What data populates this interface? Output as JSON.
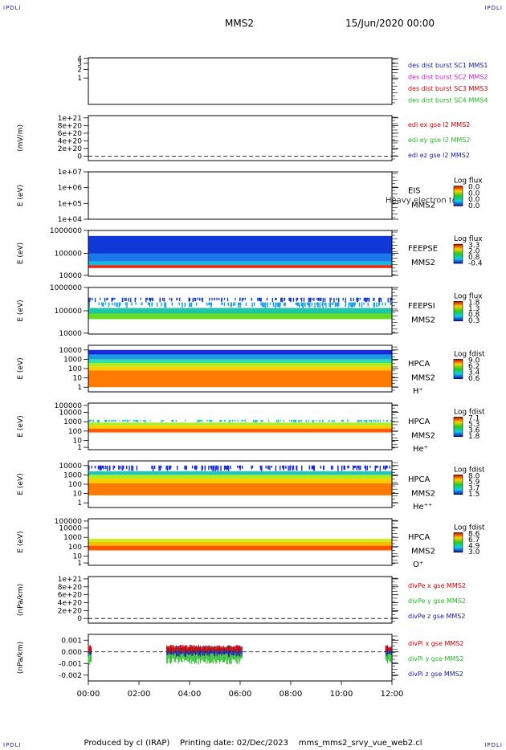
{
  "corner_label": "IPDLI",
  "header": {
    "spacecraft": "MMS2",
    "date": "15/Jun/2020 00:00"
  },
  "footer": {
    "produced_by": "Produced by cl (IRAP)",
    "printing_date": "Printing date: 02/Dec/2023",
    "file": "mms_mms2_srvy_vue_web2.cl"
  },
  "time_axis": {
    "ticks": [
      "00:00",
      "02:00",
      "04:00",
      "06:00",
      "08:00",
      "10:00",
      "12:00"
    ]
  },
  "colors": {
    "red": "#d40000",
    "green": "#22bb22",
    "blue": "#1a1aa6",
    "magenta": "#cc22cc"
  },
  "chart_data": [
    {
      "type": "line",
      "ylabel": "",
      "yticks": [
        "1",
        "2",
        "3",
        "4"
      ],
      "legend": [
        {
          "text": "des dist burst SC1 MMS1",
          "color": "#1a1aa6"
        },
        {
          "text": "des dist burst SC2 MMS2",
          "color": "#cc22cc"
        },
        {
          "text": "des dist burst SC3 MMS3",
          "color": "#d40000"
        },
        {
          "text": "des dist burst SC4 MMS4",
          "color": "#22bb22"
        }
      ]
    },
    {
      "type": "line",
      "ylabel": "(mV/m)",
      "yticks": [
        "0",
        "2e+20",
        "4e+20",
        "6e+20",
        "8e+20",
        "1e+21"
      ],
      "zero_line": true,
      "legend": [
        {
          "text": "edi ex gse l2 MMS2",
          "color": "#d40000"
        },
        {
          "text": "edi ey gse l2 MMS2",
          "color": "#22bb22"
        },
        {
          "text": "edi ez gse l2 MMS2",
          "color": "#1a1aa6"
        }
      ]
    },
    {
      "type": "heatmap",
      "ylabel": "E (eV)",
      "yticks": [
        "1e+04",
        "1e+05",
        "1e+06",
        "1e+07"
      ],
      "instrument": "EIS",
      "spacecraft": "MMS2",
      "extra": "Heavy electron td",
      "colorbar": {
        "title": "Log flux",
        "ticks": [
          "0.0",
          "0.0",
          "0.0",
          "0.0"
        ]
      },
      "bands": []
    },
    {
      "type": "heatmap",
      "ylabel": "E (eV)",
      "yticks": [
        "10000",
        "100000",
        "1000000"
      ],
      "instrument": "FEEPSE",
      "spacecraft": "MMS2",
      "colorbar": {
        "title": "Log flux",
        "ticks": [
          "3.3",
          "2.0",
          "0.8",
          "-0.4"
        ]
      },
      "bands": [
        {
          "y0": 0.88,
          "y1": 0.5,
          "color": "#1038d8"
        },
        {
          "y0": 0.5,
          "y1": 0.32,
          "color": "#1a78e8"
        },
        {
          "y0": 0.32,
          "y1": 0.24,
          "color": "#12b8e0"
        },
        {
          "y0": 0.24,
          "y1": 0.18,
          "color": "#ee2200"
        }
      ]
    },
    {
      "type": "heatmap",
      "ylabel": "E (eV)",
      "yticks": [
        "10000",
        "100000",
        "1000000"
      ],
      "instrument": "FEEPSI",
      "spacecraft": "MMS2",
      "colorbar": {
        "title": "Log flux",
        "ticks": [
          "1.8",
          "1.3",
          "0.8",
          "0.3"
        ]
      },
      "bands": [
        {
          "y0": 0.78,
          "y1": 0.68,
          "color": "#1a3ac8",
          "sparse": true
        },
        {
          "y0": 0.68,
          "y1": 0.56,
          "color": "#1aa0e0",
          "sparse": true
        },
        {
          "y0": 0.56,
          "y1": 0.44,
          "color": "#22c4a8"
        },
        {
          "y0": 0.44,
          "y1": 0.32,
          "color": "#66dd22"
        }
      ]
    },
    {
      "type": "heatmap",
      "ylabel": "E (eV)",
      "yticks": [
        "1",
        "10",
        "100",
        "1000",
        "10000"
      ],
      "instrument": "HPCA",
      "spacecraft": "MMS2",
      "species": "H⁺",
      "colorbar": {
        "title": "Log fdist",
        "ticks": [
          "9.0",
          "6.2",
          "3.4",
          "0.6"
        ]
      },
      "bands": [
        {
          "y0": 0.9,
          "y1": 0.8,
          "color": "#1a2ad8"
        },
        {
          "y0": 0.8,
          "y1": 0.7,
          "color": "#1a9ae8"
        },
        {
          "y0": 0.7,
          "y1": 0.62,
          "color": "#33ddaa"
        },
        {
          "y0": 0.62,
          "y1": 0.54,
          "color": "#aaee22"
        },
        {
          "y0": 0.54,
          "y1": 0.46,
          "color": "#ffd000"
        },
        {
          "y0": 0.46,
          "y1": 0.1,
          "color": "#ff7a00"
        }
      ]
    },
    {
      "type": "heatmap",
      "ylabel": "E (eV)",
      "yticks": [
        "1",
        "10",
        "100",
        "1000",
        "10000",
        "100000"
      ],
      "instrument": "HPCA",
      "spacecraft": "MMS2",
      "species": "He⁺",
      "colorbar": {
        "title": "Log fdist",
        "ticks": [
          "7.1",
          "5.3",
          "3.6",
          "1.8"
        ]
      },
      "bands": [
        {
          "y0": 0.64,
          "y1": 0.58,
          "color": "#22c4c0",
          "sparse": true
        },
        {
          "y0": 0.58,
          "y1": 0.52,
          "color": "#aaee22"
        },
        {
          "y0": 0.52,
          "y1": 0.45,
          "color": "#ffcc00"
        },
        {
          "y0": 0.45,
          "y1": 0.37,
          "color": "#ff5a00"
        }
      ]
    },
    {
      "type": "heatmap",
      "ylabel": "E (eV)",
      "yticks": [
        "1",
        "10",
        "100",
        "1000",
        "10000"
      ],
      "instrument": "HPCA",
      "spacecraft": "MMS2",
      "species": "He⁺⁺",
      "colorbar": {
        "title": "Log fdist",
        "ticks": [
          "8.0",
          "5.9",
          "3.7",
          "1.5"
        ]
      },
      "bands": [
        {
          "y0": 0.9,
          "y1": 0.78,
          "color": "#1a2ad8",
          "sparse": true
        },
        {
          "y0": 0.78,
          "y1": 0.7,
          "color": "#22c4c0"
        },
        {
          "y0": 0.7,
          "y1": 0.62,
          "color": "#aaee22"
        },
        {
          "y0": 0.62,
          "y1": 0.52,
          "color": "#ffcc00"
        },
        {
          "y0": 0.52,
          "y1": 0.26,
          "color": "#ff7a00"
        }
      ]
    },
    {
      "type": "heatmap",
      "ylabel": "E (eV)",
      "yticks": [
        "1",
        "10",
        "100",
        "1000",
        "10000",
        "100000"
      ],
      "instrument": "HPCA",
      "spacecraft": "MMS2",
      "species": "O⁺",
      "colorbar": {
        "title": "Log fdist",
        "ticks": [
          "8.6",
          "6.7",
          "4.9",
          "3.0"
        ]
      },
      "bands": [
        {
          "y0": 0.57,
          "y1": 0.5,
          "color": "#ccee22"
        },
        {
          "y0": 0.5,
          "y1": 0.42,
          "color": "#ffbb00"
        },
        {
          "y0": 0.42,
          "y1": 0.32,
          "color": "#ff5500"
        }
      ]
    },
    {
      "type": "line",
      "ylabel": "(nPa/km)",
      "yticks": [
        "0",
        "2e+20",
        "4e+20",
        "6e+20",
        "8e+20",
        "1e+21"
      ],
      "zero_line": true,
      "legend": [
        {
          "text": "divPe x gse MMS2",
          "color": "#d40000"
        },
        {
          "text": "divPe y gse MMS2",
          "color": "#22bb22"
        },
        {
          "text": "divPe z gse MMS2",
          "color": "#1a1aa6"
        }
      ]
    },
    {
      "type": "line",
      "ylabel": "(nPa/km)",
      "yticks": [
        "-0.002",
        "-0.001",
        "0.000",
        "0.001"
      ],
      "ylim": [
        -0.0025,
        0.0015
      ],
      "zero_line": true,
      "segments": [
        [
          0.0,
          0.15
        ],
        [
          3.1,
          6.1
        ],
        [
          11.75,
          12.0
        ]
      ],
      "legend": [
        {
          "text": "divPi x gse MMS2",
          "color": "#d40000"
        },
        {
          "text": "divPi y gse MMS2",
          "color": "#22bb22"
        },
        {
          "text": "divPi z gse MMS2",
          "color": "#1a1aa6"
        }
      ]
    }
  ]
}
